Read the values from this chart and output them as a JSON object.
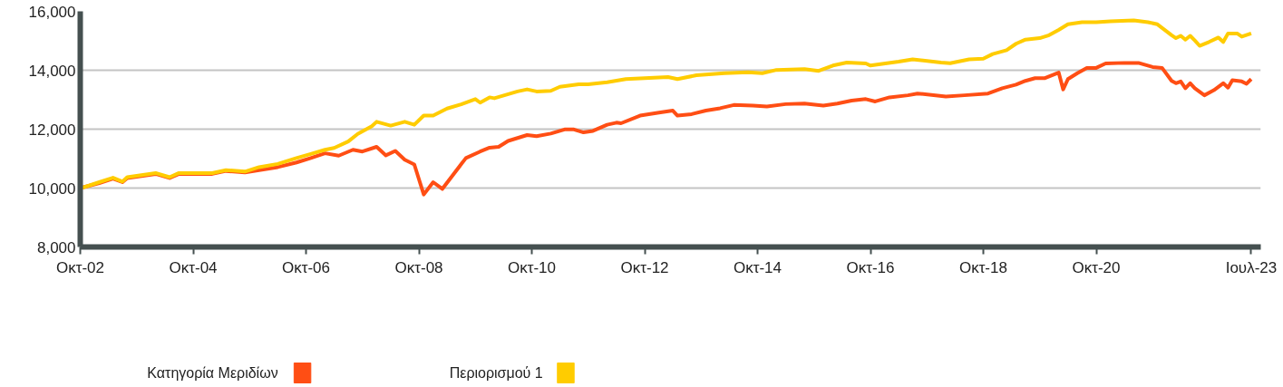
{
  "chart_data": {
    "type": "line",
    "xlim": [
      "2002-10",
      "2023-09"
    ],
    "ylim": [
      8000,
      16000
    ],
    "xticks": [
      {
        "value": "2002-10",
        "label": "Οκτ-02"
      },
      {
        "value": "2004-10",
        "label": "Οκτ-04"
      },
      {
        "value": "2006-10",
        "label": "Οκτ-06"
      },
      {
        "value": "2008-10",
        "label": "Οκτ-08"
      },
      {
        "value": "2010-10",
        "label": "Οκτ-10"
      },
      {
        "value": "2012-10",
        "label": "Οκτ-12"
      },
      {
        "value": "2014-10",
        "label": "Οκτ-14"
      },
      {
        "value": "2016-10",
        "label": "Οκτ-16"
      },
      {
        "value": "2018-10",
        "label": "Οκτ-18"
      },
      {
        "value": "2020-10",
        "label": "Οκτ-20"
      },
      {
        "value": "2023-07",
        "label": "Ιουλ-23"
      }
    ],
    "yticks": [
      {
        "value": 8000,
        "label": "8,000"
      },
      {
        "value": 10000,
        "label": "10,000"
      },
      {
        "value": 12000,
        "label": "12,000"
      },
      {
        "value": 14000,
        "label": "14,000"
      },
      {
        "value": 16000,
        "label": "16,000"
      }
    ],
    "grid": "y",
    "legend": "bottom left",
    "marker": "none",
    "line_style": "solid",
    "series": [
      {
        "name": "Κατηγορία Μεριδίων",
        "color": "#ff4e14",
        "x": [
          "2002-10",
          "2003-02",
          "2003-05",
          "2003-07",
          "2003-08",
          "2004-02",
          "2004-05",
          "2004-07",
          "2005-02",
          "2005-05",
          "2005-09",
          "2005-12",
          "2006-04",
          "2006-08",
          "2006-11",
          "2007-02",
          "2007-05",
          "2007-08",
          "2007-10",
          "2008-01",
          "2008-03",
          "2008-05",
          "2008-07",
          "2008-09",
          "2008-11",
          "2009-01",
          "2009-03",
          "2009-08",
          "2009-11",
          "2010-01",
          "2010-03",
          "2010-05",
          "2010-09",
          "2010-11",
          "2011-02",
          "2011-05",
          "2011-07",
          "2011-09",
          "2011-11",
          "2012-02",
          "2012-04",
          "2012-05",
          "2012-09",
          "2013-01",
          "2013-04",
          "2013-05",
          "2013-08",
          "2013-11",
          "2014-02",
          "2014-05",
          "2014-09",
          "2014-12",
          "2015-04",
          "2015-08",
          "2015-12",
          "2016-03",
          "2016-06",
          "2016-09",
          "2016-11",
          "2017-02",
          "2017-06",
          "2017-08",
          "2018-02",
          "2018-06",
          "2018-11",
          "2019-02",
          "2019-05",
          "2019-07",
          "2019-09",
          "2019-11",
          "2020-02",
          "2020-03",
          "2020-04",
          "2020-06",
          "2020-08",
          "2020-10",
          "2020-12",
          "2021-04",
          "2021-07",
          "2021-10",
          "2021-12",
          "2022-02",
          "2022-03",
          "2022-04",
          "2022-05",
          "2022-06",
          "2022-07",
          "2022-09",
          "2022-11",
          "2023-01",
          "2023-02",
          "2023-03",
          "2023-05",
          "2023-06",
          "2023-07"
        ],
        "values": [
          10000,
          10170,
          10320,
          10200,
          10340,
          10480,
          10340,
          10480,
          10480,
          10580,
          10530,
          10610,
          10710,
          10870,
          11020,
          11180,
          11100,
          11300,
          11240,
          11400,
          11110,
          11260,
          10960,
          10800,
          9780,
          10200,
          9970,
          11020,
          11240,
          11370,
          11400,
          11600,
          11800,
          11760,
          11850,
          11990,
          11990,
          11890,
          11940,
          12150,
          12220,
          12200,
          12460,
          12560,
          12630,
          12460,
          12510,
          12630,
          12710,
          12820,
          12800,
          12770,
          12850,
          12870,
          12800,
          12870,
          12970,
          13020,
          12940,
          13080,
          13150,
          13210,
          13110,
          13150,
          13210,
          13390,
          13510,
          13640,
          13730,
          13730,
          13920,
          13350,
          13700,
          13900,
          14080,
          14080,
          14230,
          14250,
          14250,
          14110,
          14080,
          13640,
          13560,
          13620,
          13390,
          13560,
          13390,
          13150,
          13320,
          13560,
          13410,
          13660,
          13620,
          13540,
          13700
        ]
      },
      {
        "name": "Περιορισμού 1",
        "color": "#ffcc00",
        "x": [
          "2002-10",
          "2003-02",
          "2003-05",
          "2003-07",
          "2003-08",
          "2004-02",
          "2004-05",
          "2004-07",
          "2005-02",
          "2005-05",
          "2005-09",
          "2005-12",
          "2006-04",
          "2006-08",
          "2006-11",
          "2007-02",
          "2007-04",
          "2007-07",
          "2007-09",
          "2007-12",
          "2008-01",
          "2008-04",
          "2008-07",
          "2008-09",
          "2008-11",
          "2009-01",
          "2009-04",
          "2009-07",
          "2009-10",
          "2009-11",
          "2010-01",
          "2010-02",
          "2010-07",
          "2010-09",
          "2010-11",
          "2011-02",
          "2011-04",
          "2011-08",
          "2011-10",
          "2012-02",
          "2012-06",
          "2013-03",
          "2013-05",
          "2013-09",
          "2014-03",
          "2014-08",
          "2014-11",
          "2015-02",
          "2015-08",
          "2015-11",
          "2016-02",
          "2016-05",
          "2016-09",
          "2016-10",
          "2017-04",
          "2017-07",
          "2018-01",
          "2018-03",
          "2018-07",
          "2018-10",
          "2018-12",
          "2019-03",
          "2019-05",
          "2019-07",
          "2019-10",
          "2019-12",
          "2020-02",
          "2020-04",
          "2020-07",
          "2020-10",
          "2021-01",
          "2021-06",
          "2021-09",
          "2021-11",
          "2022-02",
          "2022-03",
          "2022-04",
          "2022-05",
          "2022-06",
          "2022-07",
          "2022-08",
          "2022-10",
          "2022-12",
          "2023-01",
          "2023-02",
          "2023-04",
          "2023-05",
          "2023-07"
        ],
        "values": [
          9990,
          10200,
          10350,
          10220,
          10370,
          10510,
          10370,
          10510,
          10510,
          10610,
          10560,
          10710,
          10820,
          11020,
          11160,
          11300,
          11360,
          11580,
          11840,
          12100,
          12250,
          12120,
          12250,
          12150,
          12460,
          12460,
          12700,
          12840,
          13020,
          12900,
          13080,
          13050,
          13280,
          13350,
          13280,
          13300,
          13440,
          13520,
          13520,
          13590,
          13700,
          13770,
          13700,
          13830,
          13900,
          13930,
          13900,
          14010,
          14040,
          13980,
          14160,
          14260,
          14230,
          14160,
          14290,
          14370,
          14260,
          14240,
          14370,
          14390,
          14550,
          14680,
          14900,
          15040,
          15090,
          15190,
          15370,
          15560,
          15630,
          15630,
          15660,
          15690,
          15630,
          15560,
          15190,
          15090,
          15170,
          15040,
          15170,
          15010,
          14830,
          14960,
          15110,
          14960,
          15250,
          15250,
          15140,
          15250
        ]
      }
    ]
  }
}
